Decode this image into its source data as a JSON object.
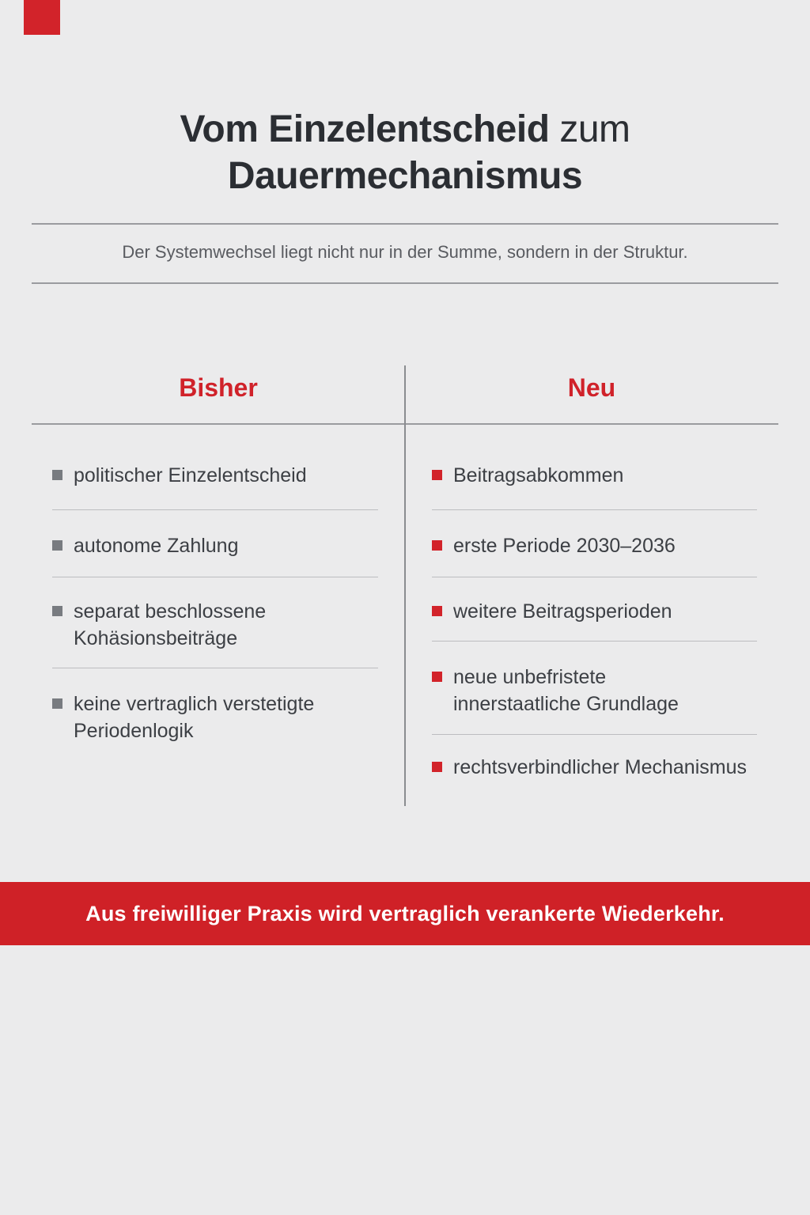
{
  "colors": {
    "background": "#ebebec",
    "accent_red": "#d2232a",
    "banner_red": "#cf2127",
    "title_dark": "#2b2e33",
    "body_text": "#3c3f44",
    "gray_bullet": "#787b80"
  },
  "title": {
    "line1_strong": "Vom Einzelentscheid",
    "line1_light": " zum",
    "line2": "Dauermechanismus"
  },
  "subtitle": "Der Systemwechsel liegt nicht nur in der Summe, sondern in der Struktur.",
  "comparison": {
    "left": {
      "header": "Bisher",
      "items": [
        [
          "politischer Einzelentscheid"
        ],
        [
          "autonome Zahlung"
        ],
        [
          "separat beschlossene",
          "Kohäsionsbeiträge"
        ],
        [
          "keine vertraglich verstetigte",
          "Periodenlogik"
        ]
      ]
    },
    "right": {
      "header": "Neu",
      "items": [
        [
          "Beitragsabkommen"
        ],
        [
          "erste Periode 2030–2036"
        ],
        [
          "weitere Beitragsperioden"
        ],
        [
          "neue unbefristete",
          "innerstaatliche Grundlage"
        ],
        [
          "rechtsverbindlicher Mechanismus"
        ]
      ]
    }
  },
  "banner": {
    "text": "Aus freiwilliger Praxis wird vertraglich verankerte Wiederkehr."
  }
}
